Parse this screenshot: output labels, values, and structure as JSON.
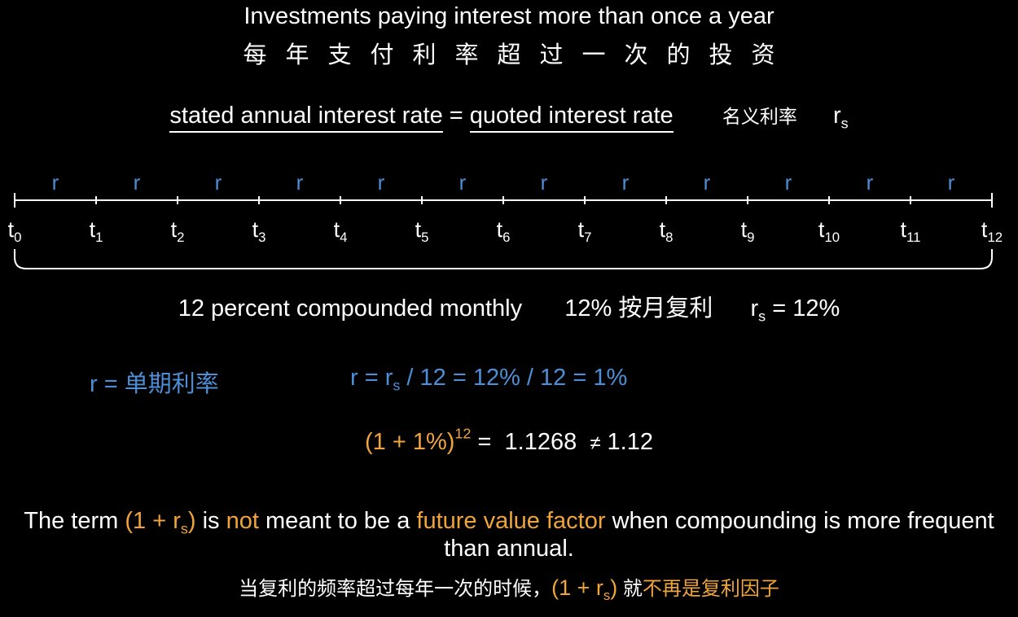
{
  "title": {
    "en": "Investments paying interest more than once a year",
    "zh": "每年支付利率超过一次的投资"
  },
  "definition": {
    "term1": "stated annual interest rate",
    "equals": "=",
    "term2": "quoted interest rate",
    "zh": "名义利率",
    "symbol": "r",
    "symbol_sub": "s"
  },
  "timeline": {
    "period_label": "r",
    "period_count": 12,
    "tick_base": "t",
    "tick_subs": [
      "0",
      "1",
      "2",
      "3",
      "4",
      "5",
      "6",
      "7",
      "8",
      "9",
      "10",
      "11",
      "12"
    ]
  },
  "summary": {
    "en": "12 percent compounded monthly",
    "zh": "12% 按月复利",
    "sym": "r",
    "sym_sub": "s",
    "sym_eq": "= 12%"
  },
  "formula": {
    "left": "r = 单期利率",
    "right_pre": "r = r",
    "right_sub": "s",
    "right_post": " / 12 = 12% / 12 = 1%"
  },
  "calc": {
    "base": "(1 + 1%)",
    "exp": "12",
    "eq": " =  1.1268  ",
    "neq": "≠",
    "cmp": " 1.12"
  },
  "note": {
    "p1": "The term ",
    "expr_pre": "(1 + r",
    "expr_sub": "s",
    "expr_post": ")",
    "p2": " is ",
    "not": "not",
    "p3": " meant to be a ",
    "fvf": "future value factor",
    "p4": " when compounding is more frequent than annual."
  },
  "note_zh": {
    "p1": "当复利的频率超过每年一次的时候，",
    "expr_pre": "(1 + r",
    "expr_sub": "s",
    "expr_post": ")",
    "p2": " 就",
    "p3": "不再是复利因子"
  },
  "colors": {
    "background": "#000000",
    "text": "#ffffff",
    "blue": "#4c8fd6",
    "orange": "#f0a43c"
  }
}
